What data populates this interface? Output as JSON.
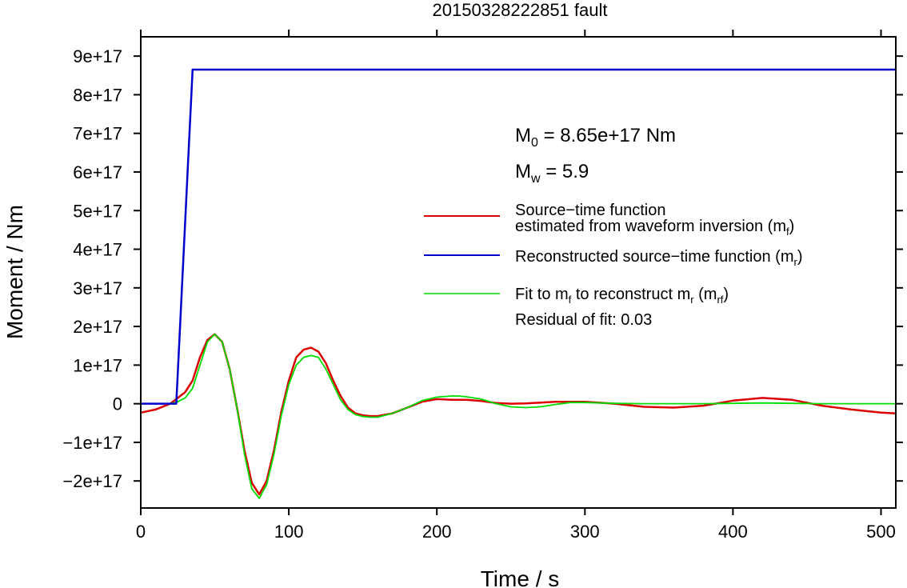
{
  "chart_data": {
    "type": "line",
    "title": "20150328222851 fault",
    "xlabel": "Time / s",
    "ylabel": "Moment / Nm",
    "xlim": [
      0,
      510
    ],
    "ylim": [
      -2.7e+17,
      9.5e+17
    ],
    "x_ticks": [
      0,
      100,
      200,
      300,
      400,
      500
    ],
    "x_tick_labels": [
      "0",
      "100",
      "200",
      "300",
      "400",
      "500"
    ],
    "y_ticks": [
      -2e+17,
      -1e+17,
      0,
      1e+17,
      2e+17,
      3e+17,
      4e+17,
      5e+17,
      6e+17,
      7e+17,
      8e+17,
      9e+17
    ],
    "y_tick_labels": [
      "−2e+17",
      "−1e+17",
      "0",
      "1e+17",
      "2e+17",
      "3e+17",
      "4e+17",
      "5e+17",
      "6e+17",
      "7e+17",
      "8e+17",
      "9e+17"
    ],
    "grid": false,
    "legend_position": "right",
    "annotations": {
      "m0_prefix": "M",
      "m0_sub": "0",
      "m0_value": " = 8.65e+17 Nm",
      "mw_prefix": "M",
      "mw_sub": "w",
      "mw_value": " = 5.9",
      "residual": "Residual of fit: 0.03"
    },
    "legend": {
      "red_line1": "Source−time function",
      "red_line2_pre": "estimated from waveform inversion (m",
      "red_line2_sub": "f",
      "red_line2_post": ")",
      "blue_pre": "Reconstructed source−time function (m",
      "blue_sub": "r",
      "blue_post": ")",
      "green_pre1": "Fit to m",
      "green_sub1": "f",
      "green_mid": " to reconstruct m",
      "green_sub2": "r",
      "green_pre2": " (m",
      "green_sub3": "rf",
      "green_post": ")"
    },
    "series": [
      {
        "color": "#dd0000",
        "x": [
          0,
          10,
          20,
          25,
          30,
          35,
          40,
          45,
          50,
          55,
          60,
          65,
          70,
          75,
          80,
          85,
          90,
          95,
          100,
          105,
          110,
          115,
          120,
          125,
          130,
          135,
          140,
          145,
          150,
          155,
          160,
          170,
          180,
          190,
          200,
          210,
          220,
          230,
          240,
          250,
          260,
          270,
          280,
          290,
          300,
          320,
          340,
          360,
          380,
          400,
          420,
          440,
          460,
          480,
          500,
          510
        ],
        "y": [
          -2.3e+16,
          -1.5e+16,
          0,
          1.5e+16,
          3e+16,
          6e+16,
          1.2e+17,
          1.65e+17,
          1.8e+17,
          1.6e+17,
          9e+16,
          -1e+16,
          -1.2e+17,
          -2.05e+17,
          -2.35e+17,
          -2e+17,
          -1.2e+17,
          -2e+16,
          6e+16,
          1.2e+17,
          1.4e+17,
          1.45e+17,
          1.35e+17,
          1.05e+17,
          6e+16,
          2e+16,
          -1e+16,
          -2.5e+16,
          -3e+16,
          -3.2e+16,
          -3.2e+16,
          -2.5e+16,
          -1e+16,
          5000000000000000.0,
          1.2e+16,
          1e+16,
          1e+16,
          7000000000000000.0,
          2000000000000000.0,
          0,
          1000000000000000.0,
          3000000000000000.0,
          5000000000000000.0,
          5000000000000000.0,
          5000000000000000.0,
          0,
          -8000000000000000.0,
          -1e+16,
          -5000000000000000.0,
          8000000000000000.0,
          1.5e+16,
          1e+16,
          -5000000000000000.0,
          -1.5e+16,
          -2.3e+16,
          -2.5e+16
        ]
      },
      {
        "color": "#0000cc",
        "x": [
          0,
          24,
          35,
          510
        ],
        "y": [
          0,
          0,
          8.65e+17,
          8.65e+17
        ]
      },
      {
        "color": "#00dd00",
        "x": [
          0,
          10,
          20,
          25,
          30,
          35,
          40,
          45,
          50,
          55,
          60,
          65,
          70,
          75,
          80,
          85,
          90,
          95,
          100,
          105,
          110,
          115,
          120,
          125,
          130,
          135,
          140,
          145,
          150,
          155,
          160,
          170,
          180,
          190,
          200,
          210,
          215,
          220,
          230,
          240,
          250,
          260,
          270,
          280,
          290,
          300,
          320,
          340,
          360,
          380,
          400,
          420,
          440,
          460,
          480,
          500,
          510
        ],
        "y": [
          0,
          0,
          0,
          5000000000000000.0,
          1.5e+16,
          4e+16,
          1e+17,
          1.6e+17,
          1.8e+17,
          1.6e+17,
          9e+16,
          -1e+16,
          -1.3e+17,
          -2.2e+17,
          -2.45e+17,
          -2.1e+17,
          -1.3e+17,
          -3e+16,
          5e+16,
          1e+17,
          1.2e+17,
          1.25e+17,
          1.2e+17,
          9e+16,
          5e+16,
          1e+16,
          -1.5e+16,
          -2.8e+16,
          -3.3e+16,
          -3.5e+16,
          -3.5e+16,
          -2.5e+16,
          -1e+16,
          8000000000000000.0,
          1.7e+16,
          2e+16,
          2e+16,
          1.8e+16,
          1.2e+16,
          0,
          -8000000000000000.0,
          -1e+16,
          -8000000000000000.0,
          -2000000000000000.0,
          3000000000000000.0,
          3000000000000000.0,
          1000000000000000.0,
          0,
          0,
          0,
          1000000000000000.0,
          2000000000000000.0,
          1000000000000000.0,
          0,
          0,
          0,
          0
        ]
      }
    ]
  }
}
